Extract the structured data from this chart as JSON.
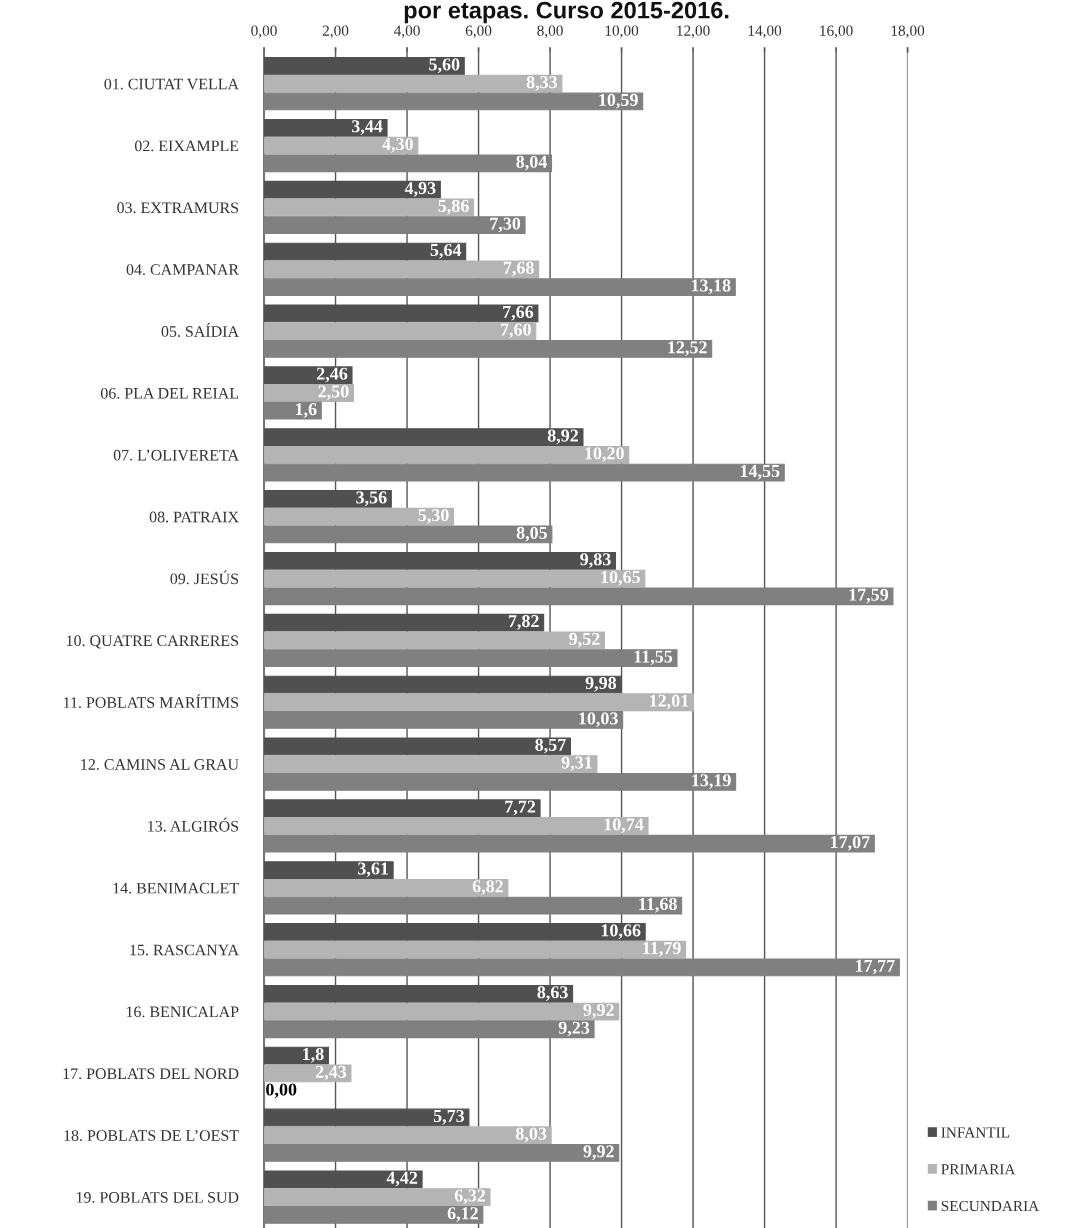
{
  "chart_data": {
    "type": "bar",
    "orientation": "horizontal",
    "title": "por etapas. Curso 2015-2016.",
    "categories": [
      "01. CIUTAT VELLA",
      "02. EIXAMPLE",
      "03. EXTRAMURS",
      "04. CAMPANAR",
      "05. SAÍDIA",
      "06. PLA DEL REIAL",
      "07. L’OLIVERETA",
      "08. PATRAIX",
      "09. JESÚS",
      "10. QUATRE CARRERES",
      "11. POBLATS MARÍTIMS",
      "12. CAMINS AL GRAU",
      "13. ALGIRÓS",
      "14. BENIMACLET",
      "15. RASCANYA",
      "16. BENICALAP",
      "17. POBLATS DEL NORD",
      "18. POBLATS DE L’OEST",
      "19. POBLATS DEL SUD"
    ],
    "series": [
      {
        "name": "INFANTIL",
        "color": "#505050",
        "values": [
          5.6,
          3.44,
          4.93,
          5.64,
          7.66,
          2.46,
          8.92,
          3.56,
          9.83,
          7.82,
          9.98,
          8.57,
          7.72,
          3.61,
          10.66,
          8.63,
          1.8,
          5.73,
          4.42
        ],
        "value_labels": [
          "5,60",
          "3,44",
          "4,93",
          "5,64",
          "7,66",
          "2,46",
          "8,92",
          "3,56",
          "9,83",
          "7,82",
          "9,98",
          "8,57",
          "7,72",
          "3,61",
          "10,66",
          "8,63",
          "1,8",
          "5,73",
          "4,42"
        ]
      },
      {
        "name": "PRIMARIA",
        "color": "#b4b4b4",
        "values": [
          8.33,
          4.3,
          5.86,
          7.68,
          7.6,
          2.5,
          10.2,
          5.3,
          10.65,
          9.52,
          12.01,
          9.31,
          10.74,
          6.82,
          11.79,
          9.92,
          2.43,
          8.03,
          6.32
        ],
        "value_labels": [
          "8,33",
          "4,30",
          "5,86",
          "7,68",
          "7,60",
          "2,50",
          "10,20",
          "5,30",
          "10,65",
          "9,52",
          "12,01",
          "9,31",
          "10,74",
          "6,82",
          "11,79",
          "9,92",
          "2,43",
          "8,03",
          "6,32"
        ]
      },
      {
        "name": "SECUNDARIA",
        "color": "#808080",
        "values": [
          10.59,
          8.04,
          7.3,
          13.18,
          12.52,
          1.6,
          14.55,
          8.05,
          17.59,
          11.55,
          10.03,
          13.19,
          17.07,
          11.68,
          17.77,
          9.23,
          0.0,
          9.92,
          6.12
        ],
        "value_labels": [
          "10,59",
          "8,04",
          "7,30",
          "13,18",
          "12,52",
          "1,6",
          "14,55",
          "8,05",
          "17,59",
          "11,55",
          "10,03",
          "13,19",
          "17,07",
          "11,68",
          "17,77",
          "9,23",
          "0,00",
          "9,92",
          "6,12"
        ]
      }
    ],
    "xlim": [
      0,
      18
    ],
    "xticks": [
      {
        "value": 0,
        "label": "0,00"
      },
      {
        "value": 2,
        "label": "2,00"
      },
      {
        "value": 4,
        "label": "4,00"
      },
      {
        "value": 6,
        "label": "6,00"
      },
      {
        "value": 8,
        "label": "8,00"
      },
      {
        "value": 10,
        "label": "10,00"
      },
      {
        "value": 12,
        "label": "12,00"
      },
      {
        "value": 14,
        "label": "14,00"
      },
      {
        "value": 16,
        "label": "16,00"
      },
      {
        "value": 18,
        "label": "18,00"
      }
    ],
    "grid": "x",
    "legend": "bottom right"
  }
}
